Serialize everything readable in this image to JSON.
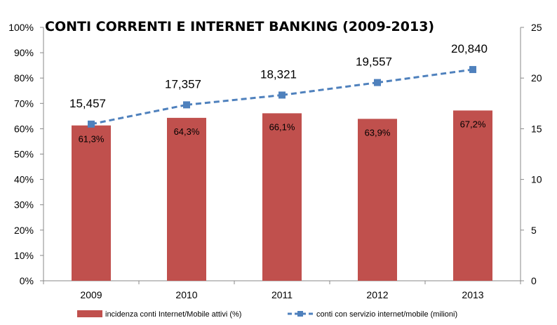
{
  "chart_data": {
    "type": "bar",
    "title": "CONTI CORRENTI E INTERNET BANKING (2009-2013)",
    "categories": [
      "2009",
      "2010",
      "2011",
      "2012",
      "2013"
    ],
    "series": [
      {
        "name": "incidenza conti Internet/Mobile attivi (%)",
        "type": "bar",
        "axis": "left",
        "values": [
          61.3,
          64.3,
          66.1,
          63.9,
          67.2
        ],
        "labels": [
          "61,3%",
          "64,3%",
          "66,1%",
          "63,9%",
          "67,2%"
        ],
        "color": "#c0504d"
      },
      {
        "name": "conti con servizio internet/mobile (milioni)",
        "type": "line",
        "axis": "right",
        "values": [
          15.457,
          17.357,
          18.321,
          19.557,
          20.84
        ],
        "labels": [
          "15,457",
          "17,357",
          "18,321",
          "19,557",
          "20,840"
        ],
        "color": "#4f81bd",
        "line_style": "dashed",
        "marker": "square"
      }
    ],
    "y_left": {
      "ylim": [
        0,
        100
      ],
      "ticks": [
        "0%",
        "10%",
        "20%",
        "30%",
        "40%",
        "50%",
        "60%",
        "70%",
        "80%",
        "90%",
        "100%"
      ]
    },
    "y_right": {
      "ylim": [
        0,
        25
      ],
      "ticks": [
        "0",
        "5",
        "10",
        "15",
        "20",
        "25"
      ]
    },
    "grid": false,
    "legend_position": "bottom"
  }
}
